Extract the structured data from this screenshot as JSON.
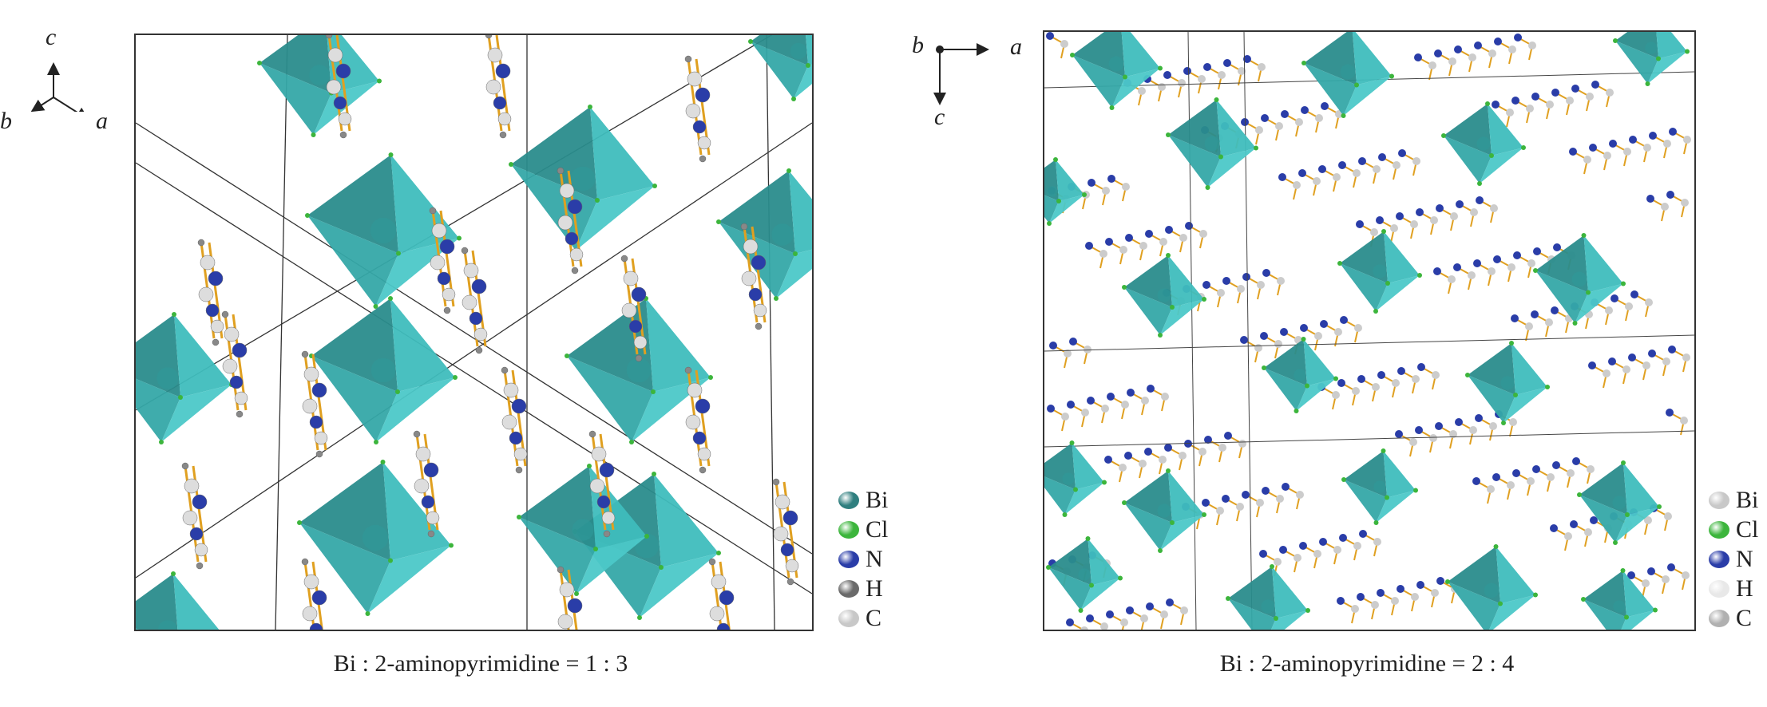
{
  "figure": {
    "left_panel": {
      "caption": "Bi : 2-aminopyrimidine = 1 : 3",
      "axes": {
        "c": "c",
        "b": "b",
        "a": "a"
      },
      "legend": [
        {
          "label": "Bi",
          "color": "#2f7f7f"
        },
        {
          "label": "Cl",
          "color": "#3cb53c"
        },
        {
          "label": "N",
          "color": "#2a3da8"
        },
        {
          "label": "H",
          "color": "#6a6a6a"
        },
        {
          "label": "C",
          "color": "#c8c8c8"
        }
      ]
    },
    "right_panel": {
      "caption": "Bi : 2-aminopyrimidine = 2 : 4",
      "axes": {
        "b": "b",
        "a": "a",
        "c": "c"
      },
      "legend": [
        {
          "label": "Bi",
          "color": "#c8c8c8"
        },
        {
          "label": "Cl",
          "color": "#3cb53c"
        },
        {
          "label": "N",
          "color": "#2a3da8"
        },
        {
          "label": "H",
          "color": "#e8e8e8"
        },
        {
          "label": "C",
          "color": "#b0b0b0"
        }
      ]
    },
    "colors": {
      "polyhedron": "#3fbdbd",
      "polyhedron_dark": "#2a8c8c",
      "bond": "#e0a020"
    }
  }
}
